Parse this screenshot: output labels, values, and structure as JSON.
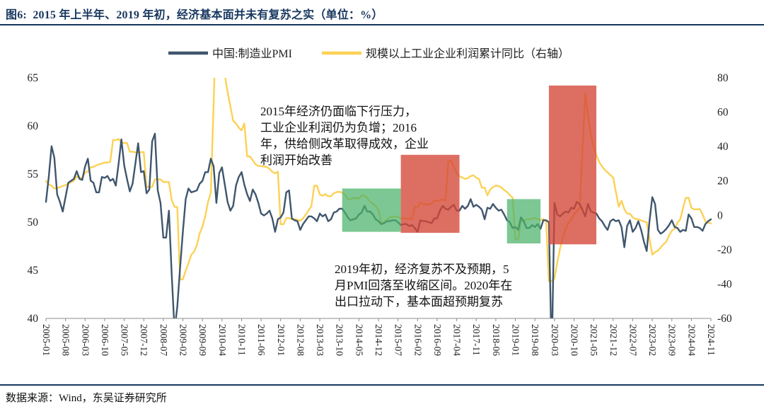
{
  "figure": {
    "title": "图6:  2015 年上半年、2019 年初，经济基本面并未有复苏之实（单位：%）",
    "source": "数据来源：Wind，东吴证券研究所",
    "accent_color": "#17375E"
  },
  "chart_data": {
    "type": "line",
    "x_frequency": "monthly",
    "x_start": "2005-01",
    "x_end": "2024-11",
    "x_tick_labels": [
      "2005-01",
      "2005-08",
      "2006-03",
      "2006-10",
      "2007-05",
      "2007-12",
      "2008-07",
      "2009-02",
      "2009-09",
      "2010-04",
      "2010-11",
      "2011-06",
      "2012-01",
      "2012-08",
      "2013-03",
      "2013-10",
      "2014-05",
      "2014-12",
      "2015-07",
      "2016-02",
      "2016-09",
      "2017-04",
      "2017-11",
      "2018-06",
      "2019-01",
      "2019-08",
      "2020-03",
      "2020-10",
      "2021-05",
      "2021-12",
      "2022-07",
      "2023-02",
      "2023-09",
      "2024-04",
      "2024-11"
    ],
    "left_axis": {
      "min": 40,
      "max": 65,
      "ticks": [
        65,
        60,
        55,
        50,
        45,
        40
      ]
    },
    "right_axis": {
      "min": -60,
      "max": 80,
      "ticks": [
        80,
        60,
        40,
        20,
        0,
        -20,
        -40,
        -60
      ]
    },
    "grid": "off",
    "legend_position": "top",
    "series": [
      {
        "name": "中国:制造业PMI",
        "axis": "left",
        "color": "#3F566D",
        "values": [
          52.1,
          54.7,
          57.9,
          56.7,
          52.9,
          52.1,
          51.1,
          52.6,
          54.1,
          54.3,
          54.5,
          55.3,
          54.5,
          54.4,
          55.8,
          56.6,
          54.3,
          54.1,
          53.1,
          53.1,
          54.7,
          54.6,
          54.8,
          54.3,
          54.5,
          53.8,
          56.1,
          58.6,
          55.9,
          54.5,
          53.2,
          54.0,
          56.1,
          58.2,
          55.2,
          55.3,
          53.0,
          53.4,
          58.4,
          59.2,
          53.3,
          52.0,
          48.4,
          48.4,
          51.2,
          44.6,
          38.8,
          41.2,
          45.3,
          49.0,
          52.4,
          53.5,
          53.1,
          53.2,
          53.3,
          54.0,
          54.3,
          55.2,
          55.2,
          56.6,
          55.8,
          52.0,
          55.1,
          55.7,
          53.9,
          52.1,
          51.2,
          51.7,
          53.8,
          54.7,
          55.2,
          53.9,
          52.9,
          52.2,
          53.4,
          52.9,
          52.0,
          50.9,
          50.7,
          50.9,
          51.2,
          50.4,
          49.0,
          50.3,
          50.5,
          51.0,
          53.1,
          53.3,
          50.4,
          50.2,
          50.1,
          49.2,
          49.8,
          50.2,
          50.6,
          50.6,
          50.4,
          50.1,
          50.9,
          50.6,
          50.8,
          50.1,
          50.3,
          51.0,
          51.1,
          51.4,
          51.4,
          51.0,
          50.5,
          50.2,
          50.3,
          50.4,
          50.8,
          51.0,
          51.7,
          51.1,
          51.1,
          50.8,
          50.3,
          50.1,
          49.8,
          49.9,
          50.1,
          50.1,
          50.2,
          50.2,
          50.0,
          49.7,
          49.8,
          49.8,
          49.6,
          49.7,
          49.4,
          49.0,
          50.2,
          50.1,
          50.1,
          50.0,
          49.9,
          50.4,
          50.4,
          51.2,
          51.7,
          51.4,
          51.3,
          51.6,
          51.8,
          51.2,
          51.2,
          51.7,
          51.4,
          51.7,
          52.4,
          51.6,
          51.8,
          51.6,
          51.3,
          50.3,
          51.5,
          51.4,
          51.9,
          51.5,
          51.2,
          51.3,
          50.8,
          50.2,
          50.0,
          49.4,
          49.5,
          49.2,
          50.5,
          50.1,
          49.4,
          49.4,
          49.7,
          49.5,
          49.8,
          49.3,
          50.2,
          50.2,
          50.0,
          35.7,
          52.0,
          50.8,
          50.6,
          50.9,
          51.1,
          51.0,
          51.5,
          51.4,
          52.1,
          51.9,
          51.3,
          50.6,
          51.9,
          51.1,
          51.0,
          50.9,
          50.4,
          50.1,
          49.6,
          49.2,
          50.1,
          50.3,
          50.1,
          50.2,
          49.5,
          47.4,
          49.6,
          50.2,
          49.0,
          49.4,
          50.1,
          49.2,
          48.0,
          47.0,
          50.1,
          52.6,
          51.9,
          49.2,
          48.8,
          49.0,
          49.3,
          49.7,
          50.2,
          49.5,
          49.4,
          49.0,
          49.2,
          49.1,
          50.8,
          50.4,
          49.5,
          49.5,
          49.4,
          49.1,
          49.8,
          50.1,
          50.3
        ]
      },
      {
        "name": "规模以上工业企业利润累计同比（右轴）",
        "axis": "right",
        "color": "#FCD155",
        "values": [
          20.0,
          18.0,
          17.2,
          15.6,
          15.8,
          16.4,
          17.1,
          17.6,
          18.5,
          19.4,
          20.1,
          22.7,
          21.8,
          21.8,
          24.9,
          25.5,
          28.0,
          28.2,
          29.1,
          29.6,
          30.1,
          30.8,
          30.7,
          31.0,
          43.8,
          43.8,
          44.4,
          42.1,
          42.1,
          42.1,
          37.0,
          37.0,
          36.7,
          36.7,
          36.7,
          36.9,
          16.5,
          16.5,
          16.5,
          20.9,
          20.9,
          20.9,
          19.4,
          19.4,
          19.4,
          9.0,
          4.9,
          4.9,
          -37.3,
          -37.3,
          -32.2,
          -27.9,
          -22.9,
          -21.2,
          -17.3,
          -10.6,
          -6.5,
          -0.6,
          7.8,
          13.0,
          65.0,
          119.7,
          119.7,
          91.5,
          81.6,
          71.8,
          63.5,
          55.0,
          53.5,
          51.0,
          49.4,
          53.5,
          34.3,
          34.3,
          32.0,
          29.7,
          28.7,
          28.7,
          28.3,
          28.2,
          27.0,
          25.3,
          24.4,
          25.4,
          -5.2,
          -5.2,
          -1.6,
          -1.6,
          -2.4,
          -2.2,
          -2.7,
          -3.1,
          -1.8,
          0.5,
          3.0,
          5.3,
          17.2,
          17.2,
          12.1,
          11.4,
          12.3,
          11.1,
          11.1,
          12.8,
          13.5,
          13.7,
          13.2,
          12.2,
          9.4,
          9.4,
          10.1,
          10.0,
          9.8,
          11.4,
          11.7,
          10.0,
          7.9,
          6.7,
          5.3,
          3.3,
          -4.2,
          -4.2,
          -2.7,
          -1.3,
          -0.8,
          -0.7,
          -1.0,
          -1.9,
          -1.7,
          -2.0,
          -1.9,
          -2.3,
          4.8,
          4.8,
          7.4,
          6.5,
          6.4,
          6.2,
          6.9,
          8.4,
          8.4,
          8.6,
          9.4,
          8.5,
          31.5,
          31.5,
          28.3,
          24.4,
          22.7,
          22.0,
          21.2,
          21.6,
          22.8,
          23.3,
          21.9,
          21.0,
          16.1,
          16.1,
          11.6,
          15.0,
          16.5,
          17.2,
          17.1,
          16.2,
          14.7,
          13.6,
          11.8,
          10.3,
          -14.0,
          -14.0,
          -3.3,
          -3.4,
          -2.3,
          -2.4,
          -1.7,
          -1.7,
          -2.1,
          -2.9,
          -2.1,
          -3.3,
          -38.3,
          -38.3,
          -36.7,
          -27.4,
          -19.3,
          -12.8,
          -8.1,
          -4.4,
          -2.4,
          0.7,
          2.4,
          4.1,
          37.0,
          71.0,
          58.0,
          47.0,
          40.0,
          35.0,
          31.0,
          28.5,
          26.5,
          25.0,
          23.5,
          22.0,
          13.5,
          5.0,
          8.5,
          3.5,
          1.0,
          1.0,
          -1.1,
          -2.1,
          -2.3,
          -3.0,
          -3.6,
          -4.0,
          -13.5,
          -22.9,
          -21.4,
          -20.6,
          -18.8,
          -16.8,
          -15.5,
          -11.7,
          -9.0,
          -7.8,
          -4.4,
          -2.3,
          4.0,
          10.2,
          10.2,
          4.3,
          3.4,
          3.5,
          3.6,
          0.5,
          -3.5,
          -4.3,
          -4.7
        ]
      }
    ],
    "highlights": [
      {
        "kind": "green",
        "x_from": "2013-11",
        "x_to": "2015-08",
        "y_from": 49.0,
        "y_to": 53.5
      },
      {
        "kind": "red",
        "x_from": "2015-08",
        "x_to": "2017-05",
        "y_from": 48.9,
        "y_to": 57.0
      },
      {
        "kind": "green",
        "x_from": "2018-10",
        "x_to": "2019-10",
        "y_from": 47.8,
        "y_to": 52.4
      },
      {
        "kind": "red",
        "x_from": "2020-01",
        "x_to": "2021-06",
        "y_from": 47.7,
        "y_to": 64.2
      }
    ],
    "highlight_colors": {
      "green": {
        "fill": "#49B26A",
        "opacity": 0.72
      },
      "red": {
        "fill": "#D34536",
        "opacity": 0.78
      }
    },
    "annotations": [
      {
        "x": 368,
        "y": 163,
        "lines": [
          "2015年经济仍面临下行压力，",
          "工业企业利润仍为负增；2016",
          "年，供给侧改革取得成效，企业",
          "利润开始改善"
        ]
      },
      {
        "x": 473,
        "y": 386,
        "lines": [
          "2019年初，经济复苏不及预期，5",
          "月PMI回落至收缩区间。2020年在",
          "出口拉动下，基本面超预期复苏"
        ]
      }
    ]
  }
}
